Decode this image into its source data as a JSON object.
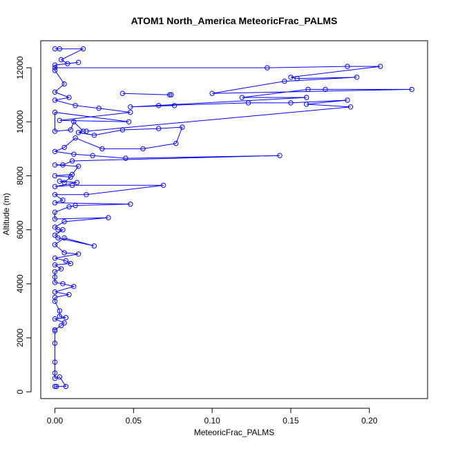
{
  "chart_data": {
    "type": "scatter",
    "title": "ATOM1 North_America MeteoricFrac_PALMS",
    "xlabel": "MeteoricFrac_PALMS",
    "ylabel": "Altitude (m)",
    "xlim": [
      -0.009,
      0.237
    ],
    "ylim": [
      -250,
      13000
    ],
    "x_ticks": [
      0.0,
      0.05,
      0.1,
      0.15,
      0.2
    ],
    "x_tick_labels": [
      "0.00",
      "0.05",
      "0.10",
      "0.15",
      "0.20"
    ],
    "y_ticks": [
      0,
      2000,
      4000,
      6000,
      8000,
      10000,
      12000
    ],
    "y_tick_labels": [
      "0",
      "2000",
      "4000",
      "6000",
      "8000",
      "10000",
      "12000"
    ],
    "grid": false,
    "legend": false,
    "connected": true,
    "color": "#0000ff",
    "series": [
      {
        "points": [
          [
            0.0,
            12700
          ],
          [
            0.003,
            12700
          ],
          [
            0.018,
            12700
          ],
          [
            0.004,
            12300
          ],
          [
            0.008,
            12150
          ],
          [
            0.015,
            12200
          ],
          [
            0.0,
            12100
          ],
          [
            0.0,
            11900
          ],
          [
            0.006,
            11400
          ],
          [
            0.0,
            11100
          ],
          [
            0.009,
            10900
          ],
          [
            0.0,
            10800
          ],
          [
            0.013,
            10600
          ],
          [
            0.028,
            10500
          ],
          [
            0.048,
            10350
          ],
          [
            0.003,
            10050
          ],
          [
            0.047,
            10000
          ],
          [
            0.0,
            10350
          ],
          [
            0.0,
            9650
          ],
          [
            0.01,
            9700
          ],
          [
            0.012,
            10000
          ],
          [
            0.018,
            9650
          ],
          [
            0.015,
            9600
          ],
          [
            0.025,
            9500
          ],
          [
            0.043,
            9700
          ],
          [
            0.066,
            9750
          ],
          [
            0.081,
            9800
          ],
          [
            0.077,
            9200
          ],
          [
            0.056,
            9000
          ],
          [
            0.03,
            9000
          ],
          [
            0.013,
            9400
          ],
          [
            0.006,
            9050
          ],
          [
            0.0,
            8900
          ],
          [
            0.012,
            8800
          ],
          [
            0.024,
            8750
          ],
          [
            0.045,
            8650
          ],
          [
            0.143,
            8750
          ],
          [
            0.011,
            8550
          ],
          [
            0.005,
            8400
          ],
          [
            0.0,
            8400
          ],
          [
            0.015,
            8350
          ],
          [
            0.011,
            8050
          ],
          [
            0.0,
            8000
          ],
          [
            0.01,
            7950
          ],
          [
            0.006,
            7750
          ],
          [
            0.003,
            7800
          ],
          [
            0.014,
            7750
          ],
          [
            0.0,
            7600
          ],
          [
            0.011,
            7650
          ],
          [
            0.069,
            7650
          ],
          [
            0.02,
            7300
          ],
          [
            0.0,
            7300
          ],
          [
            0.005,
            7100
          ],
          [
            0.0,
            7000
          ],
          [
            0.048,
            6950
          ],
          [
            0.013,
            6900
          ],
          [
            0.009,
            6850
          ],
          [
            0.0,
            6650
          ],
          [
            0.0,
            6400
          ],
          [
            0.034,
            6450
          ],
          [
            0.006,
            6300
          ],
          [
            0.0,
            6100
          ],
          [
            0.002,
            6000
          ],
          [
            0.005,
            6000
          ],
          [
            0.0,
            5800
          ],
          [
            0.002,
            5700
          ],
          [
            0.025,
            5400
          ],
          [
            0.006,
            5700
          ],
          [
            0.0,
            5450
          ],
          [
            0.006,
            5150
          ],
          [
            0.015,
            5100
          ],
          [
            0.0,
            4950
          ],
          [
            0.007,
            4850
          ],
          [
            0.01,
            4750
          ],
          [
            0.0,
            4700
          ],
          [
            0.004,
            4550
          ],
          [
            0.0,
            4450
          ],
          [
            0.0,
            4250
          ],
          [
            0.0,
            4050
          ],
          [
            0.005,
            4000
          ],
          [
            0.012,
            3900
          ],
          [
            0.0,
            3700
          ],
          [
            0.009,
            3600
          ],
          [
            0.0,
            3500
          ],
          [
            0.0,
            3350
          ],
          [
            0.003,
            3000
          ],
          [
            0.003,
            2800
          ],
          [
            0.007,
            2750
          ],
          [
            0.0,
            2700
          ],
          [
            0.006,
            2550
          ],
          [
            0.004,
            2450
          ],
          [
            0.0,
            2300
          ],
          [
            0.0,
            2250
          ],
          [
            0.0,
            1800
          ],
          [
            0.0,
            1100
          ],
          [
            0.0,
            700
          ],
          [
            0.0,
            500
          ],
          [
            0.003,
            550
          ],
          [
            0.007,
            200
          ],
          [
            0.0,
            200
          ],
          [
            0.001,
            200
          ]
        ]
      },
      {
        "points": [
          [
            0.0,
            12000
          ],
          [
            0.135,
            12000
          ],
          [
            0.186,
            12050
          ],
          [
            0.207,
            12050
          ],
          [
            0.15,
            11650
          ],
          [
            0.154,
            11600
          ],
          [
            0.192,
            11650
          ],
          [
            0.146,
            11500
          ],
          [
            0.1,
            11050
          ],
          [
            0.227,
            11200
          ],
          [
            0.172,
            11200
          ],
          [
            0.161,
            11200
          ],
          [
            0.119,
            10900
          ],
          [
            0.16,
            10900
          ],
          [
            0.048,
            10550
          ],
          [
            0.076,
            10600
          ],
          [
            0.066,
            10600
          ],
          [
            0.123,
            10700
          ],
          [
            0.15,
            10700
          ],
          [
            0.186,
            10800
          ],
          [
            0.16,
            10650
          ],
          [
            0.188,
            10550
          ],
          [
            0.02,
            9650
          ]
        ]
      },
      {
        "points": [
          [
            0.043,
            11050
          ],
          [
            0.073,
            11000
          ],
          [
            0.074,
            11000
          ]
        ]
      }
    ]
  }
}
